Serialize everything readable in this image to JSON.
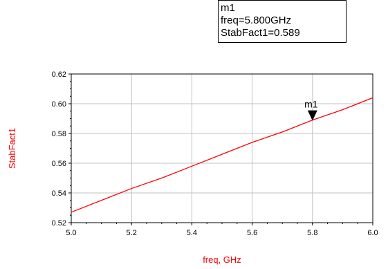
{
  "marker_readout": {
    "name": "m1",
    "freq_line": "freq=5.800GHz",
    "value_line": "StabFact1=0.589"
  },
  "chart_data": {
    "type": "line",
    "title": "",
    "xlabel": "freq, GHz",
    "ylabel": "StabFact1",
    "xlim": [
      5.0,
      6.0
    ],
    "ylim": [
      0.52,
      0.62
    ],
    "grid": true,
    "xticks": [
      5.0,
      5.2,
      5.4,
      5.6,
      5.8,
      6.0
    ],
    "xtick_labels": [
      "5.0",
      "5.2",
      "5.4",
      "5.6",
      "5.8",
      "6.0"
    ],
    "yticks": [
      0.52,
      0.54,
      0.56,
      0.58,
      0.6,
      0.62
    ],
    "ytick_labels": [
      "0.52",
      "0.54",
      "0.56",
      "0.58",
      "0.60",
      "0.62"
    ],
    "series": [
      {
        "color": "#ff0000",
        "x": [
          5.0,
          5.1,
          5.2,
          5.3,
          5.4,
          5.5,
          5.6,
          5.7,
          5.8,
          5.9,
          6.0
        ],
        "y": [
          0.527,
          0.535,
          0.543,
          0.55,
          0.558,
          0.566,
          0.574,
          0.581,
          0.589,
          0.596,
          0.604
        ]
      }
    ],
    "markers": [
      {
        "label": "m1",
        "x": 5.8,
        "y": 0.589
      }
    ]
  }
}
